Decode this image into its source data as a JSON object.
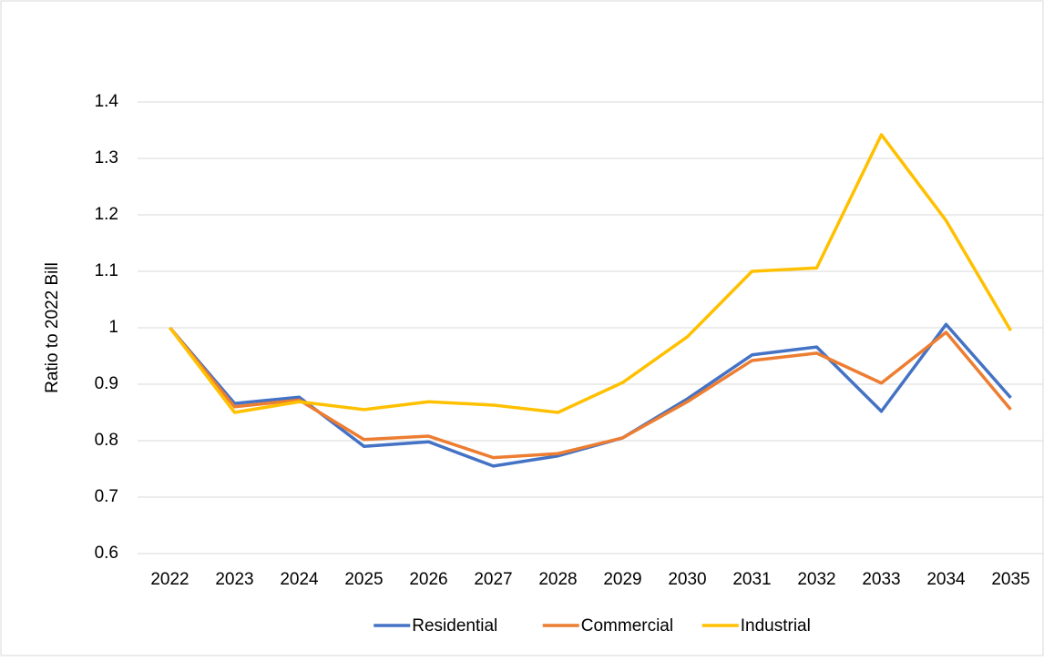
{
  "chart_data": {
    "type": "line",
    "y_label": "Ratio to 2022 Bill",
    "categories": [
      "2022",
      "2023",
      "2024",
      "2025",
      "2026",
      "2027",
      "2028",
      "2029",
      "2030",
      "2031",
      "2032",
      "2033",
      "2034",
      "2035"
    ],
    "series": [
      {
        "name": "Residential",
        "color": "#4472c4",
        "values": [
          1.0,
          0.866,
          0.877,
          0.79,
          0.798,
          0.755,
          0.773,
          0.805,
          0.874,
          0.952,
          0.966,
          0.852,
          1.006,
          0.876
        ]
      },
      {
        "name": "Commercial",
        "color": "#ed7d31",
        "values": [
          1.0,
          0.86,
          0.872,
          0.802,
          0.808,
          0.77,
          0.777,
          0.805,
          0.869,
          0.942,
          0.955,
          0.902,
          0.992,
          0.855
        ]
      },
      {
        "name": "Industrial",
        "color": "#ffc000",
        "values": [
          1.0,
          0.85,
          0.869,
          0.855,
          0.869,
          0.863,
          0.85,
          0.903,
          0.984,
          1.1,
          1.106,
          1.342,
          1.19,
          0.995
        ]
      }
    ],
    "ylim": [
      0.6,
      1.4
    ],
    "yticks": [
      0.6,
      0.7,
      0.8,
      0.9,
      1,
      1.1,
      1.2,
      1.3,
      1.4
    ],
    "grid": true,
    "legend": "bottom"
  }
}
